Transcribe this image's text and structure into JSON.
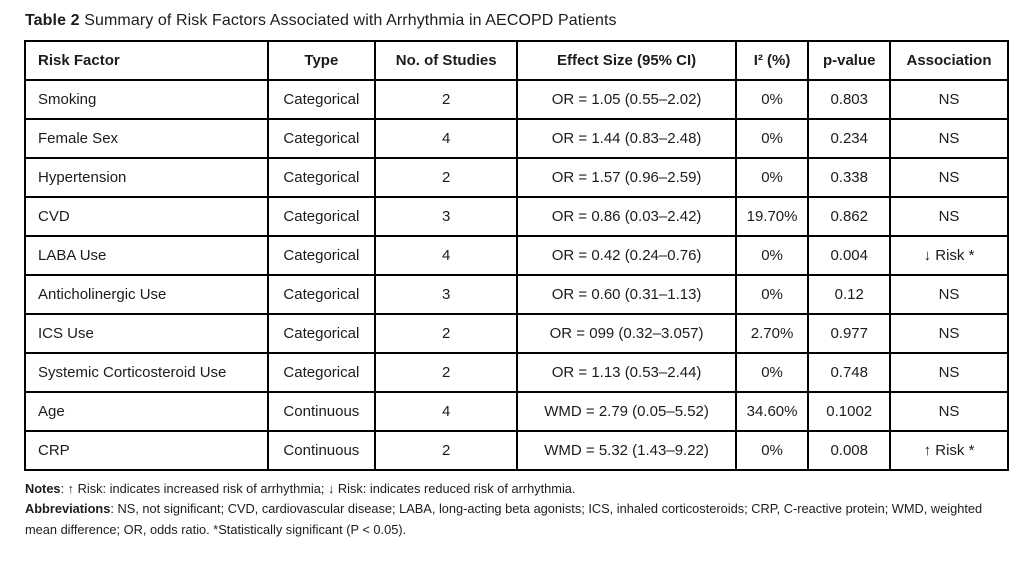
{
  "title": {
    "label": "Table 2",
    "text": " Summary of Risk Factors Associated with Arrhythmia in AECOPD Patients"
  },
  "table": {
    "columns": [
      "Risk Factor",
      "Type",
      "No. of Studies",
      "Effect Size (95% CI)",
      "I² (%)",
      "p-value",
      "Association"
    ],
    "rows": [
      [
        "Smoking",
        "Categorical",
        "2",
        "OR = 1.05 (0.55–2.02)",
        "0%",
        "0.803",
        "NS"
      ],
      [
        "Female Sex",
        "Categorical",
        "4",
        "OR = 1.44 (0.83–2.48)",
        "0%",
        "0.234",
        "NS"
      ],
      [
        "Hypertension",
        "Categorical",
        "2",
        "OR = 1.57 (0.96–2.59)",
        "0%",
        "0.338",
        "NS"
      ],
      [
        "CVD",
        "Categorical",
        "3",
        "OR = 0.86 (0.03–2.42)",
        "19.70%",
        "0.862",
        "NS"
      ],
      [
        "LABA Use",
        "Categorical",
        "4",
        "OR = 0.42 (0.24–0.76)",
        "0%",
        "0.004",
        "↓ Risk *"
      ],
      [
        "Anticholinergic Use",
        "Categorical",
        "3",
        "OR = 0.60 (0.31–1.13)",
        "0%",
        "0.12",
        "NS"
      ],
      [
        "ICS Use",
        "Categorical",
        "2",
        "OR = 099 (0.32–3.057)",
        "2.70%",
        "0.977",
        "NS"
      ],
      [
        "Systemic Corticosteroid Use",
        "Categorical",
        "2",
        "OR = 1.13 (0.53–2.44)",
        "0%",
        "0.748",
        "NS"
      ],
      [
        "Age",
        "Continuous",
        "4",
        "WMD = 2.79 (0.05–5.52)",
        "34.60%",
        "0.1002",
        "NS"
      ],
      [
        "CRP",
        "Continuous",
        "2",
        "WMD = 5.32 (1.43–9.22)",
        "0%",
        "0.008",
        "↑ Risk *"
      ]
    ]
  },
  "notes": {
    "notes_label": "Notes",
    "notes_text": ": ↑ Risk: indicates increased risk of arrhythmia; ↓ Risk: indicates reduced risk of arrhythmia.",
    "abbreviations_label": "Abbreviations",
    "abbreviations_text": ": NS, not significant; CVD, cardiovascular disease; LABA, long-acting beta agonists; ICS, inhaled corticosteroids; CRP, C-reactive protein; WMD, weighted mean difference; OR, odds ratio. *Statistically significant (P < 0.05)."
  },
  "colors": {
    "border": "#000000",
    "text": "#1c1c1c",
    "background": "#ffffff"
  }
}
